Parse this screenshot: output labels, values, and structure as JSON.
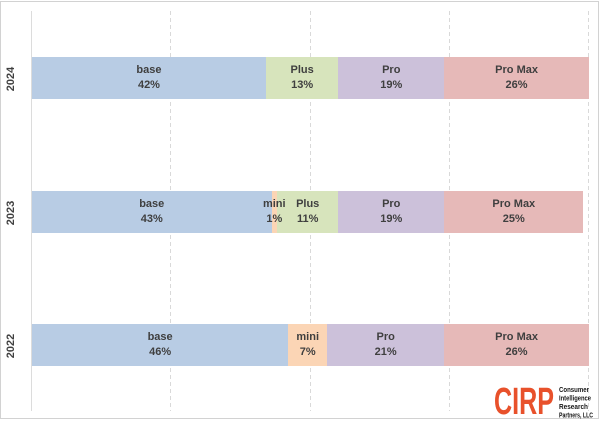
{
  "chart_data": {
    "type": "bar",
    "orientation": "horizontal-stacked",
    "title": "",
    "xlabel": "",
    "ylabel": "",
    "categories": [
      "2024",
      "2023",
      "2022"
    ],
    "series": [
      {
        "name": "base",
        "color": "#b8cce4",
        "values": [
          42,
          43,
          46
        ]
      },
      {
        "name": "mini",
        "color": "#fbd5b5",
        "values": [
          null,
          1,
          7
        ]
      },
      {
        "name": "Plus",
        "color": "#d7e4bc",
        "values": [
          13,
          11,
          null
        ]
      },
      {
        "name": "Pro",
        "color": "#ccc1da",
        "values": [
          19,
          19,
          21
        ]
      },
      {
        "name": "Pro Max",
        "color": "#e6b9b8",
        "values": [
          26,
          25,
          26
        ]
      }
    ],
    "xlim": [
      0,
      100
    ],
    "value_suffix": "%",
    "gridlines_percent": [
      25,
      50,
      75,
      100
    ],
    "grid": "dashed-vertical",
    "legend": "none",
    "label_text_color": "#3f3f3f",
    "axis_line_color": "#dcdcdc"
  },
  "logo": {
    "brand": "CIRP",
    "brand_color": "#e8512b",
    "text_color": "#161616",
    "lines": [
      "Consumer",
      "Intelligence",
      "Research",
      "Partners, LLC"
    ]
  }
}
